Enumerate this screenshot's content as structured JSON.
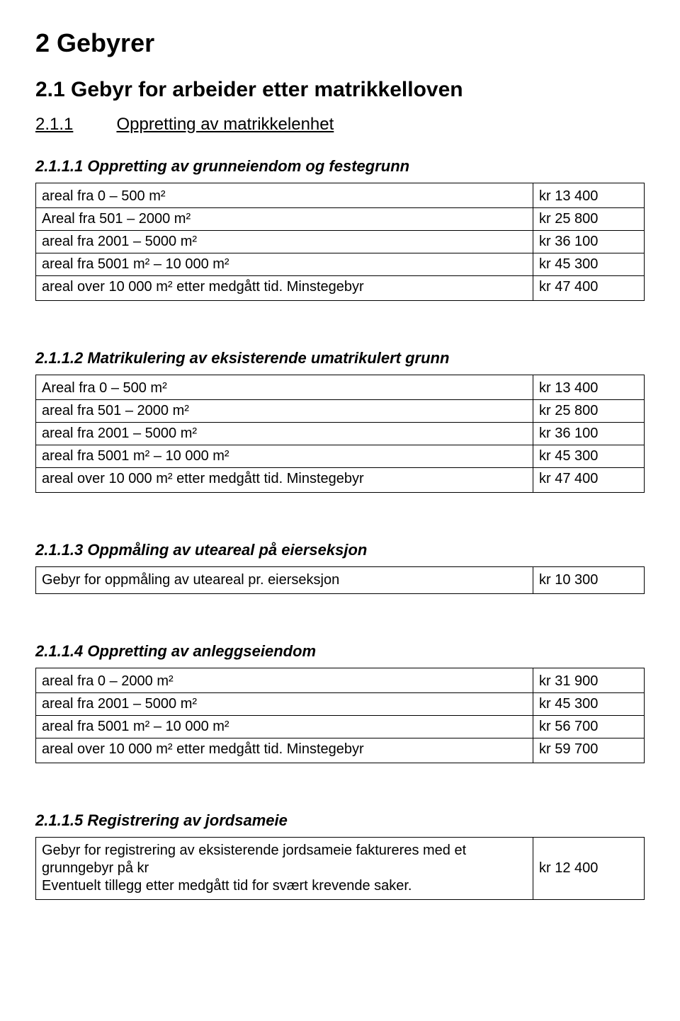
{
  "title": "2 Gebyrer",
  "section21": {
    "title": "2.1 Gebyr for arbeider etter matrikkelloven",
    "h211_num": "2.1.1",
    "h211_txt": "Oppretting av matrikkelenhet"
  },
  "s2111": {
    "title": "2.1.1.1 Oppretting av grunneiendom og festegrunn",
    "rows": [
      {
        "label": "areal fra 0 – 500 m²",
        "amount": "kr   13 400"
      },
      {
        "label": "Areal fra 501 – 2000 m²",
        "amount": "kr   25 800"
      },
      {
        "label": "areal fra 2001 – 5000 m²",
        "amount": "kr   36 100"
      },
      {
        "label": "areal fra 5001 m² – 10 000 m²",
        "amount": "kr   45 300"
      },
      {
        "label": "areal over 10 000 m² etter medgått tid. Minstegebyr",
        "amount": "kr   47 400"
      }
    ]
  },
  "s2112": {
    "title": "2.1.1.2 Matrikulering av eksisterende umatrikulert grunn",
    "rows": [
      {
        "label": "Areal fra 0 – 500 m²",
        "amount": "kr   13 400"
      },
      {
        "label": "areal fra 501 – 2000 m²",
        "amount": "kr   25 800"
      },
      {
        "label": "areal fra 2001 – 5000 m²",
        "amount": "kr   36 100"
      },
      {
        "label": "areal fra 5001 m² – 10 000 m²",
        "amount": "kr   45 300"
      },
      {
        "label": "areal over 10 000 m² etter medgått tid. Minstegebyr",
        "amount": "kr   47 400"
      }
    ]
  },
  "s2113": {
    "title": "2.1.1.3 Oppmåling av uteareal på eierseksjon",
    "rows": [
      {
        "label": "Gebyr for oppmåling av uteareal pr. eierseksjon",
        "amount": "kr   10 300"
      }
    ]
  },
  "s2114": {
    "title": "2.1.1.4 Oppretting av anleggseiendom",
    "rows": [
      {
        "label": "areal fra 0 – 2000 m²",
        "amount": "kr   31 900"
      },
      {
        "label": "areal fra 2001 – 5000 m²",
        "amount": "kr   45 300"
      },
      {
        "label": "areal fra 5001 m² – 10 000 m²",
        "amount": "kr   56 700"
      },
      {
        "label": "areal over 10 000 m² etter medgått tid. Minstegebyr",
        "amount": "kr   59 700"
      }
    ]
  },
  "s2115": {
    "title": "2.1.1.5 Registrering av jordsameie",
    "rows": [
      {
        "label": "Gebyr for registrering av eksisterende jordsameie faktureres med et grunngebyr på kr\nEventuelt tillegg etter medgått tid for svært krevende saker.",
        "amount": "kr   12 400"
      }
    ]
  }
}
